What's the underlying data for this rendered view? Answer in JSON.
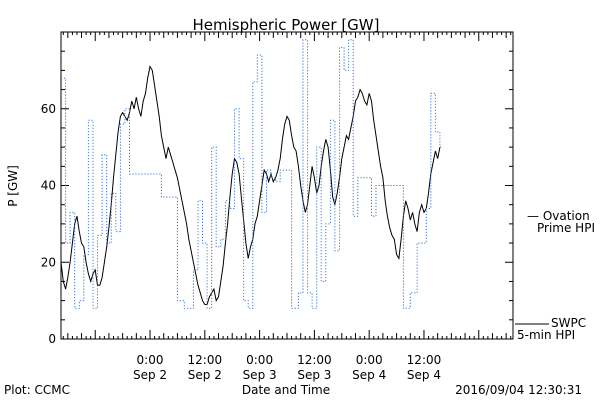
{
  "chart_data": {
    "type": "line",
    "title": "Hemispheric Power [GW]",
    "ylabel": "P [GW]",
    "xlabel": "Date and Time",
    "ylim": [
      0,
      80
    ],
    "xlim_hours": [
      -19.5,
      79.5
    ],
    "yticks": [
      0,
      20,
      40,
      60
    ],
    "xticks": [
      {
        "t": 0,
        "time": "0:00",
        "date": "Sep 2"
      },
      {
        "t": 12,
        "time": "12:00",
        "date": "Sep 2"
      },
      {
        "t": 24,
        "time": "0:00",
        "date": "Sep 3"
      },
      {
        "t": 36,
        "time": "12:00",
        "date": "Sep 3"
      },
      {
        "t": 48,
        "time": "0:00",
        "date": "Sep 4"
      },
      {
        "t": 60,
        "time": "12:00",
        "date": "Sep 4"
      }
    ],
    "series": [
      {
        "name": "SWPC 5-min HPI",
        "legend_lines": [
          "SWPC",
          "5-min HPI"
        ],
        "color": "#000000",
        "style": "solid",
        "points": [
          [
            -19.5,
            20
          ],
          [
            -19,
            15
          ],
          [
            -18.5,
            13
          ],
          [
            -18,
            16
          ],
          [
            -17.5,
            20
          ],
          [
            -17,
            25
          ],
          [
            -16.5,
            30
          ],
          [
            -16,
            32
          ],
          [
            -15.5,
            28
          ],
          [
            -15,
            25
          ],
          [
            -14.5,
            24
          ],
          [
            -14,
            20
          ],
          [
            -13.5,
            17
          ],
          [
            -13,
            15
          ],
          [
            -12.5,
            17
          ],
          [
            -12,
            18
          ],
          [
            -11.5,
            14
          ],
          [
            -11,
            14
          ],
          [
            -10.5,
            16
          ],
          [
            -10,
            20
          ],
          [
            -9.5,
            24
          ],
          [
            -9,
            29
          ],
          [
            -8.5,
            35
          ],
          [
            -8,
            42
          ],
          [
            -7.5,
            48
          ],
          [
            -7,
            54
          ],
          [
            -6.5,
            58
          ],
          [
            -6,
            59
          ],
          [
            -5.5,
            58
          ],
          [
            -5,
            57
          ],
          [
            -4.5,
            59
          ],
          [
            -4,
            62
          ],
          [
            -3.5,
            60
          ],
          [
            -3,
            63
          ],
          [
            -2.5,
            60
          ],
          [
            -2,
            58
          ],
          [
            -1.5,
            62
          ],
          [
            -1,
            64
          ],
          [
            -0.5,
            68
          ],
          [
            0,
            71
          ],
          [
            0.5,
            70
          ],
          [
            1,
            66
          ],
          [
            1.5,
            62
          ],
          [
            2,
            58
          ],
          [
            2.5,
            53
          ],
          [
            3,
            50
          ],
          [
            3.5,
            47
          ],
          [
            4,
            50
          ],
          [
            4.5,
            48
          ],
          [
            5,
            46
          ],
          [
            5.5,
            44
          ],
          [
            6,
            42
          ],
          [
            6.5,
            39
          ],
          [
            7,
            36
          ],
          [
            7.5,
            33
          ],
          [
            8,
            30
          ],
          [
            8.5,
            26
          ],
          [
            9,
            23
          ],
          [
            9.5,
            20
          ],
          [
            10,
            17
          ],
          [
            10.5,
            14
          ],
          [
            11,
            12
          ],
          [
            11.5,
            10
          ],
          [
            12,
            9
          ],
          [
            12.5,
            9
          ],
          [
            13,
            11
          ],
          [
            13.5,
            12
          ],
          [
            14,
            13
          ],
          [
            14.5,
            10
          ],
          [
            15,
            11
          ],
          [
            15.5,
            15
          ],
          [
            16,
            19
          ],
          [
            16.5,
            25
          ],
          [
            17,
            30
          ],
          [
            17.5,
            37
          ],
          [
            18,
            43
          ],
          [
            18.5,
            47
          ],
          [
            19,
            46
          ],
          [
            19.5,
            43
          ],
          [
            20,
            37
          ],
          [
            20.5,
            31
          ],
          [
            21,
            25
          ],
          [
            21.5,
            21
          ],
          [
            22,
            24
          ],
          [
            22.5,
            26
          ],
          [
            23,
            30
          ],
          [
            23.5,
            32
          ],
          [
            24,
            36
          ],
          [
            24.5,
            40
          ],
          [
            25,
            44
          ],
          [
            25.5,
            43
          ],
          [
            26,
            41
          ],
          [
            26.5,
            43
          ],
          [
            27,
            41
          ],
          [
            27.5,
            42
          ],
          [
            28,
            44
          ],
          [
            28.5,
            47
          ],
          [
            29,
            52
          ],
          [
            29.5,
            56
          ],
          [
            30,
            58
          ],
          [
            30.5,
            57
          ],
          [
            31,
            53
          ],
          [
            31.5,
            50
          ],
          [
            32,
            49
          ],
          [
            32.5,
            45
          ],
          [
            33,
            40
          ],
          [
            33.5,
            36
          ],
          [
            34,
            33
          ],
          [
            34.5,
            35
          ],
          [
            35,
            40
          ],
          [
            35.5,
            45
          ],
          [
            36,
            42
          ],
          [
            36.5,
            38
          ],
          [
            37,
            40
          ],
          [
            37.5,
            45
          ],
          [
            38,
            49
          ],
          [
            38.5,
            52
          ],
          [
            39,
            50
          ],
          [
            39.5,
            44
          ],
          [
            40,
            37
          ],
          [
            40.5,
            35
          ],
          [
            41,
            38
          ],
          [
            41.5,
            42
          ],
          [
            42,
            47
          ],
          [
            42.5,
            50
          ],
          [
            43,
            53
          ],
          [
            43.5,
            52
          ],
          [
            44,
            55
          ],
          [
            44.5,
            58
          ],
          [
            45,
            62
          ],
          [
            45.5,
            63
          ],
          [
            46,
            65
          ],
          [
            46.5,
            64
          ],
          [
            47,
            62
          ],
          [
            47.5,
            61
          ],
          [
            48,
            64
          ],
          [
            48.5,
            62
          ],
          [
            49,
            57
          ],
          [
            49.5,
            53
          ],
          [
            50,
            49
          ],
          [
            50.5,
            45
          ],
          [
            51,
            42
          ],
          [
            51.5,
            36
          ],
          [
            52,
            32
          ],
          [
            52.5,
            29
          ],
          [
            53,
            27
          ],
          [
            53.5,
            26
          ],
          [
            54,
            22
          ],
          [
            54.5,
            21
          ],
          [
            55,
            26
          ],
          [
            55.5,
            32
          ],
          [
            56,
            36
          ],
          [
            56.5,
            34
          ],
          [
            57,
            31
          ],
          [
            57.5,
            33
          ],
          [
            58,
            30
          ],
          [
            58.5,
            28
          ],
          [
            59,
            33
          ],
          [
            59.5,
            35
          ],
          [
            60,
            33
          ],
          [
            60.5,
            34
          ],
          [
            61,
            38
          ],
          [
            61.5,
            43
          ],
          [
            62,
            46
          ],
          [
            62.5,
            49
          ],
          [
            63,
            47
          ],
          [
            63.5,
            50
          ]
        ]
      },
      {
        "name": "Ovation Prime HPI",
        "legend_lines": [
          "— Ovation",
          "Prime HPI"
        ],
        "color": "#3b73cf",
        "style": "dotted",
        "points": [
          [
            -19.5,
            68
          ],
          [
            -18.5,
            25
          ],
          [
            -17.5,
            33
          ],
          [
            -16.5,
            8
          ],
          [
            -15.5,
            10
          ],
          [
            -14.5,
            22
          ],
          [
            -13.5,
            57
          ],
          [
            -12.5,
            8
          ],
          [
            -11.5,
            27
          ],
          [
            -10.5,
            48
          ],
          [
            -9.5,
            25
          ],
          [
            -8.5,
            38
          ],
          [
            -7.5,
            28
          ],
          [
            -6.5,
            56
          ],
          [
            -5.5,
            60
          ],
          [
            -4.5,
            43
          ],
          [
            1.5,
            43
          ],
          [
            2.5,
            37
          ],
          [
            6,
            10
          ],
          [
            7.5,
            8
          ],
          [
            9.5,
            18
          ],
          [
            10.5,
            36
          ],
          [
            11.5,
            25
          ],
          [
            12.5,
            8
          ],
          [
            13.5,
            50
          ],
          [
            14.5,
            24
          ],
          [
            15.5,
            26
          ],
          [
            16.5,
            36
          ],
          [
            17.5,
            34
          ],
          [
            18.5,
            60
          ],
          [
            19.5,
            47
          ],
          [
            20.5,
            10
          ],
          [
            21.5,
            8
          ],
          [
            22.5,
            67
          ],
          [
            23.5,
            74
          ],
          [
            24.5,
            33
          ],
          [
            25.5,
            44
          ],
          [
            26.5,
            42
          ],
          [
            27.5,
            41
          ],
          [
            28.5,
            44
          ],
          [
            31,
            8
          ],
          [
            32.5,
            12
          ],
          [
            33.5,
            78
          ],
          [
            34.5,
            12
          ],
          [
            35.5,
            8
          ],
          [
            36.5,
            50
          ],
          [
            37.5,
            15
          ],
          [
            38.5,
            30
          ],
          [
            39.5,
            57
          ],
          [
            40.5,
            23
          ],
          [
            41.5,
            76
          ],
          [
            42.5,
            70
          ],
          [
            43.5,
            78
          ],
          [
            44.5,
            32
          ],
          [
            45.5,
            42
          ],
          [
            47.5,
            42
          ],
          [
            48.5,
            32
          ],
          [
            49.5,
            40
          ],
          [
            52,
            40
          ],
          [
            53.5,
            40
          ],
          [
            55.5,
            8
          ],
          [
            57,
            12
          ],
          [
            58.5,
            25
          ],
          [
            59.5,
            25
          ],
          [
            60.5,
            34
          ],
          [
            61.5,
            64
          ],
          [
            62.5,
            54
          ],
          [
            63.5,
            50
          ]
        ]
      }
    ]
  },
  "footer": {
    "plot_label": "Plot: CCMC",
    "timestamp": "2016/09/04 12:30:31"
  }
}
